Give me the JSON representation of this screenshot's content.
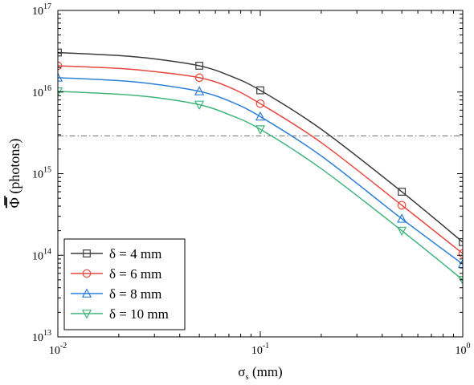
{
  "chart_data": {
    "type": "line",
    "xlabel_base": "σ",
    "xlabel_sub": "s",
    "xlabel_unit": " (mm)",
    "ylabel_symbol": "Φ",
    "ylabel_unit": " (photons)",
    "x_scale": "log",
    "y_scale": "log",
    "xlim": [
      0.01,
      1
    ],
    "ylim": [
      10000000000000.0,
      1e+17
    ],
    "x_ticks": [
      {
        "value": 0.01,
        "base": "10",
        "exp": "-2"
      },
      {
        "value": 0.1,
        "base": "10",
        "exp": "-1"
      },
      {
        "value": 1,
        "base": "10",
        "exp": "0"
      }
    ],
    "y_ticks": [
      {
        "value": 10000000000000.0,
        "base": "10",
        "exp": "13"
      },
      {
        "value": 100000000000000.0,
        "base": "10",
        "exp": "14"
      },
      {
        "value": 1000000000000000.0,
        "base": "10",
        "exp": "15"
      },
      {
        "value": 1e+16,
        "base": "10",
        "exp": "16"
      },
      {
        "value": 1e+17,
        "base": "10",
        "exp": "17"
      }
    ],
    "threshold_line": {
      "y": 2900000000000000.0,
      "color": "#808080",
      "style": "dash-dot"
    },
    "legend_position": "bottom-left",
    "grid": false,
    "marker_x": [
      0.01,
      0.05,
      0.1,
      0.5,
      1
    ],
    "series": [
      {
        "name": "δ = 4 mm",
        "color": "#3b3b3b",
        "marker": "square",
        "curve_x": [
          0.01,
          0.02,
          0.03,
          0.05,
          0.07,
          0.1,
          0.2,
          0.5,
          1
        ],
        "curve_y": [
          3.05e+16,
          2.8e+16,
          2.55e+16,
          2.1e+16,
          1.6e+16,
          1.05e+16,
          3500000000000000.0,
          600000000000000.0,
          145000000000000.0
        ],
        "marker_y": [
          3.05e+16,
          2.1e+16,
          1.05e+16,
          600000000000000.0,
          145000000000000.0
        ]
      },
      {
        "name": "δ = 6 mm",
        "color": "#e8473f",
        "marker": "circle",
        "curve_x": [
          0.01,
          0.02,
          0.03,
          0.05,
          0.07,
          0.1,
          0.2,
          0.5,
          1
        ],
        "curve_y": [
          2.1e+16,
          1.95e+16,
          1.78e+16,
          1.5e+16,
          1.15e+16,
          7200000000000000.0,
          2400000000000000.0,
          410000000000000.0,
          105000000000000.0
        ],
        "marker_y": [
          2.1e+16,
          1.5e+16,
          7200000000000000.0,
          410000000000000.0,
          105000000000000.0
        ]
      },
      {
        "name": "δ = 8 mm",
        "color": "#2f7fd6",
        "marker": "triangle-up",
        "curve_x": [
          0.01,
          0.02,
          0.03,
          0.05,
          0.07,
          0.1,
          0.2,
          0.5,
          1
        ],
        "curve_y": [
          1.5e+16,
          1.38e+16,
          1.25e+16,
          1.02e+16,
          7800000000000000.0,
          5000000000000000.0,
          1650000000000000.0,
          280000000000000.0,
          78000000000000.0
        ],
        "marker_y": [
          1.5e+16,
          1.02e+16,
          5000000000000000.0,
          280000000000000.0,
          78000000000000.0
        ]
      },
      {
        "name": "δ = 10 mm",
        "color": "#3fb57a",
        "marker": "triangle-down",
        "curve_x": [
          0.01,
          0.02,
          0.03,
          0.05,
          0.07,
          0.1,
          0.2,
          0.5,
          1
        ],
        "curve_y": [
          1.02e+16,
          9400000000000000.0,
          8600000000000000.0,
          7000000000000000.0,
          5300000000000000.0,
          3500000000000000.0,
          1150000000000000.0,
          200000000000000.0,
          50000000000000.0
        ],
        "marker_y": [
          1.02e+16,
          7000000000000000.0,
          3500000000000000.0,
          200000000000000.0,
          50000000000000.0
        ]
      }
    ]
  }
}
